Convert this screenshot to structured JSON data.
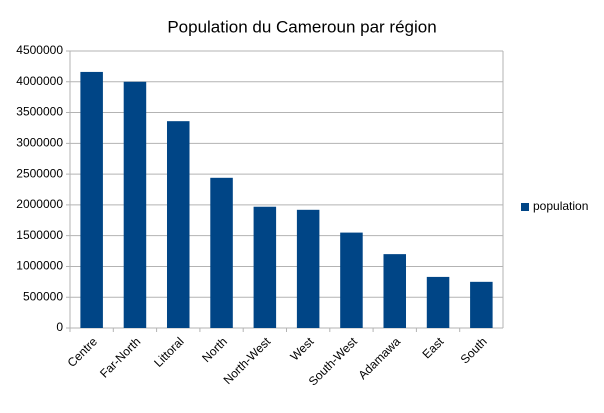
{
  "chart_data": {
    "type": "bar",
    "title": "Population du Cameroun par région",
    "categories": [
      "Centre",
      "Far-North",
      "Littoral",
      "North",
      "North-West",
      "West",
      "South-West",
      "Adamawa",
      "East",
      "South"
    ],
    "series": [
      {
        "name": "population",
        "color": "#004586",
        "values": [
          4160000,
          4000000,
          3360000,
          2440000,
          1970000,
          1920000,
          1550000,
          1200000,
          830000,
          750000
        ]
      }
    ],
    "ylim": [
      0,
      4500000
    ],
    "yticks": [
      0,
      500000,
      1000000,
      1500000,
      2000000,
      2500000,
      3000000,
      3500000,
      4000000,
      4500000
    ],
    "grid": true,
    "legend": "right"
  }
}
